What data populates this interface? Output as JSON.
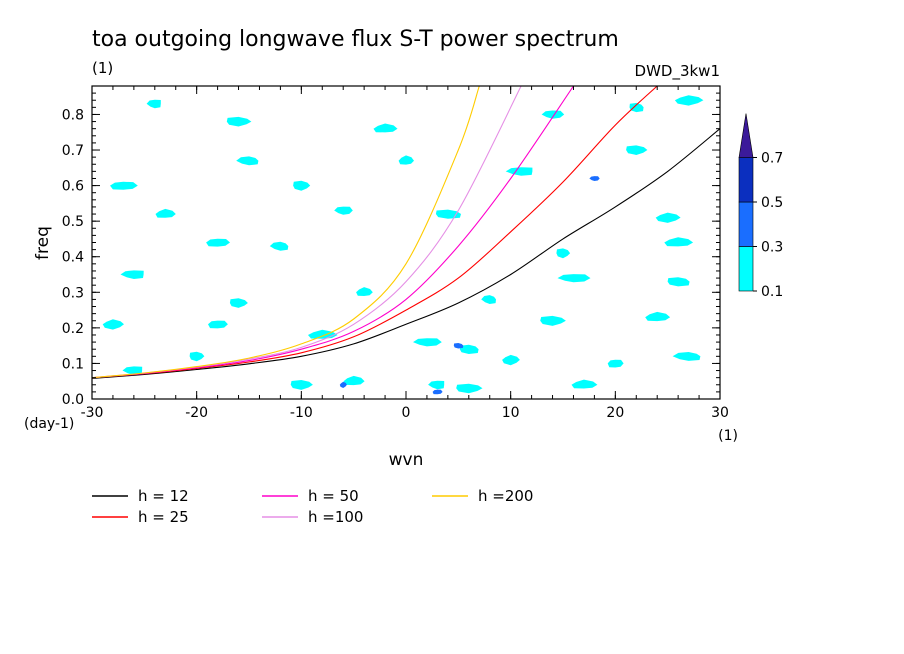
{
  "chart_data": {
    "type": "contour",
    "title": "toa outgoing longwave flux S-T power spectrum",
    "subtitle_left": "(1)",
    "subtitle_right": "DWD_3kw1",
    "xlabel": "wvn",
    "ylabel": "freq",
    "x_unit": "(1)",
    "y_unit": "(day-1)",
    "xlim": [
      -30,
      30
    ],
    "ylim": [
      0,
      0.88
    ],
    "xticks": [
      -30,
      -20,
      -10,
      0,
      10,
      20,
      30
    ],
    "xtick_labels": [
      "-30",
      "-20",
      "-10",
      "0",
      "10",
      "20",
      "30"
    ],
    "yticks": [
      0.0,
      0.1,
      0.2,
      0.3,
      0.4,
      0.5,
      0.6,
      0.7,
      0.8
    ],
    "ytick_labels": [
      "0.0",
      "0.1",
      "0.2",
      "0.3",
      "0.4",
      "0.5",
      "0.6",
      "0.7",
      "0.8"
    ],
    "colorbar": {
      "levels": [
        "0.1",
        "0.3",
        "0.5",
        "0.7"
      ],
      "colors": [
        "#00ffff",
        "#1a6eff",
        "#0b2fbf",
        "#3b1a9a"
      ]
    },
    "contour_blobs": [
      {
        "x": -24,
        "y": 0.83,
        "level": 0
      },
      {
        "x": -16,
        "y": 0.78,
        "level": 0
      },
      {
        "x": -2,
        "y": 0.76,
        "level": 0
      },
      {
        "x": 14,
        "y": 0.8,
        "level": 0
      },
      {
        "x": 22,
        "y": 0.82,
        "level": 0
      },
      {
        "x": 27,
        "y": 0.84,
        "level": 0
      },
      {
        "x": -27,
        "y": 0.6,
        "level": 0
      },
      {
        "x": -15,
        "y": 0.67,
        "level": 0
      },
      {
        "x": -10,
        "y": 0.6,
        "level": 0
      },
      {
        "x": 0,
        "y": 0.67,
        "level": 0
      },
      {
        "x": 11,
        "y": 0.64,
        "level": 0
      },
      {
        "x": 22,
        "y": 0.7,
        "level": 0
      },
      {
        "x": -23,
        "y": 0.52,
        "level": 0
      },
      {
        "x": -6,
        "y": 0.53,
        "level": 0
      },
      {
        "x": 4,
        "y": 0.52,
        "level": 0
      },
      {
        "x": 25,
        "y": 0.51,
        "level": 0
      },
      {
        "x": -18,
        "y": 0.44,
        "level": 0
      },
      {
        "x": -12,
        "y": 0.43,
        "level": 0
      },
      {
        "x": 15,
        "y": 0.41,
        "level": 0
      },
      {
        "x": 26,
        "y": 0.44,
        "level": 0
      },
      {
        "x": -26,
        "y": 0.35,
        "level": 0
      },
      {
        "x": -16,
        "y": 0.27,
        "level": 0
      },
      {
        "x": -4,
        "y": 0.3,
        "level": 0
      },
      {
        "x": 16,
        "y": 0.34,
        "level": 0
      },
      {
        "x": 26,
        "y": 0.33,
        "level": 0
      },
      {
        "x": -28,
        "y": 0.21,
        "level": 0
      },
      {
        "x": -18,
        "y": 0.21,
        "level": 0
      },
      {
        "x": 8,
        "y": 0.28,
        "level": 0
      },
      {
        "x": 14,
        "y": 0.22,
        "level": 0
      },
      {
        "x": 24,
        "y": 0.23,
        "level": 0
      },
      {
        "x": -26,
        "y": 0.08,
        "level": 0
      },
      {
        "x": -20,
        "y": 0.12,
        "level": 0
      },
      {
        "x": -8,
        "y": 0.18,
        "level": 0
      },
      {
        "x": 2,
        "y": 0.16,
        "level": 0
      },
      {
        "x": 6,
        "y": 0.14,
        "level": 0
      },
      {
        "x": 10,
        "y": 0.11,
        "level": 0
      },
      {
        "x": 20,
        "y": 0.1,
        "level": 0
      },
      {
        "x": 27,
        "y": 0.12,
        "level": 0
      },
      {
        "x": -10,
        "y": 0.04,
        "level": 0
      },
      {
        "x": -5,
        "y": 0.05,
        "level": 0
      },
      {
        "x": 3,
        "y": 0.04,
        "level": 0
      },
      {
        "x": 6,
        "y": 0.03,
        "level": 0
      },
      {
        "x": 17,
        "y": 0.04,
        "level": 0
      },
      {
        "x": 18,
        "y": 0.62,
        "level": 1
      },
      {
        "x": 5,
        "y": 0.15,
        "level": 1
      },
      {
        "x": -6,
        "y": 0.04,
        "level": 1
      },
      {
        "x": 3,
        "y": 0.02,
        "level": 1
      }
    ],
    "series": [
      {
        "name": "h = 12",
        "color": "#000000",
        "x": [
          -30,
          -25,
          -20,
          -15,
          -10,
          -5,
          0,
          5,
          10,
          15,
          20,
          25,
          30
        ],
        "y": [
          0.058,
          0.069,
          0.083,
          0.099,
          0.12,
          0.155,
          0.21,
          0.27,
          0.35,
          0.45,
          0.54,
          0.64,
          0.76
        ]
      },
      {
        "name": "h = 25",
        "color": "#ff0000",
        "x": [
          -30,
          -25,
          -20,
          -15,
          -10,
          -5,
          0,
          5,
          10,
          15,
          20,
          24
        ],
        "y": [
          0.06,
          0.071,
          0.086,
          0.104,
          0.13,
          0.175,
          0.25,
          0.34,
          0.47,
          0.61,
          0.77,
          0.88
        ]
      },
      {
        "name": "h = 50",
        "color": "#ff00cc",
        "x": [
          -30,
          -25,
          -20,
          -15,
          -10,
          -5,
          0,
          5,
          10,
          16
        ],
        "y": [
          0.06,
          0.072,
          0.088,
          0.108,
          0.14,
          0.19,
          0.28,
          0.43,
          0.62,
          0.88
        ]
      },
      {
        "name": "h =100",
        "color": "#e58fe5",
        "x": [
          -30,
          -25,
          -20,
          -15,
          -10,
          -5,
          0,
          5,
          11
        ],
        "y": [
          0.06,
          0.073,
          0.09,
          0.112,
          0.145,
          0.21,
          0.33,
          0.53,
          0.88
        ]
      },
      {
        "name": "h =200",
        "color": "#ffcc00",
        "x": [
          -30,
          -25,
          -20,
          -15,
          -10,
          -5,
          0,
          5,
          7
        ],
        "y": [
          0.06,
          0.073,
          0.091,
          0.115,
          0.155,
          0.225,
          0.38,
          0.7,
          0.88
        ]
      }
    ]
  }
}
